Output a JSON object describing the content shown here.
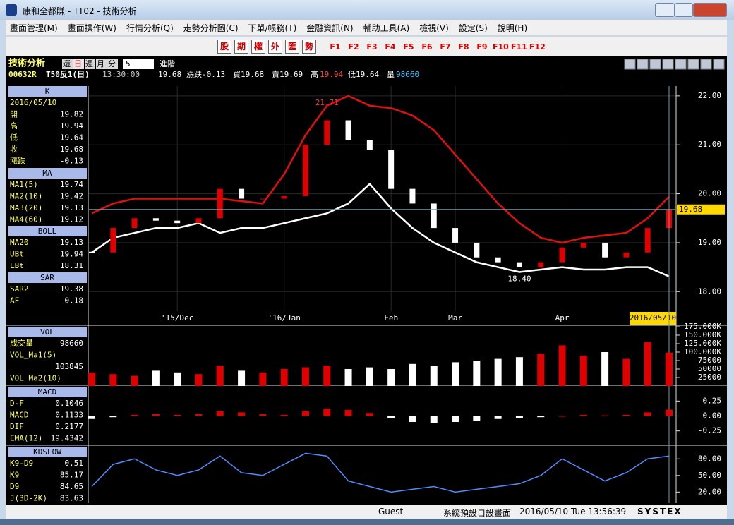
{
  "window": {
    "title": "康和全都賺 - TT02 - 技術分析"
  },
  "menu": [
    "畫面管理(M)",
    "畫面操作(W)",
    "行情分析(Q)",
    "走勢分析圖(C)",
    "下單/帳務(T)",
    "金融資訊(N)",
    "輔助工具(A)",
    "檢視(V)",
    "設定(S)",
    "說明(H)"
  ],
  "toolbar": {
    "buttons": [
      "股",
      "期",
      "權",
      "外",
      "匯",
      "勢"
    ],
    "keys": [
      "F1",
      "F2",
      "F3",
      "F4",
      "F5",
      "F6",
      "F7",
      "F8",
      "F9",
      "F10",
      "F11",
      "F12"
    ]
  },
  "info": {
    "title": "技術分析",
    "periods": [
      "還",
      "日",
      "週",
      "月",
      "分"
    ],
    "interval": "5",
    "advanced": "進階",
    "symbol": "00632R",
    "name": "T50反1(日)",
    "time": "13:30:00",
    "price": "19.68",
    "change": "漲跌-0.13",
    "bid": "買19.68",
    "ask": "賣19.69",
    "high_label": "高",
    "high": "19.94",
    "low": "低19.64",
    "volume_label": "量",
    "volume": "98660"
  },
  "side_panel": [
    {
      "title": "K",
      "rows": [
        [
          "2016/05/10"
        ],
        [
          "開",
          "19.82"
        ],
        [
          "高",
          "19.94"
        ],
        [
          "低",
          "19.64"
        ],
        [
          "收",
          "19.68"
        ],
        [
          "漲跌",
          "-0.13"
        ]
      ]
    },
    {
      "title": "MA",
      "rows": [
        [
          "MA1(5)",
          "19.74"
        ],
        [
          "MA2(10)",
          "19.42"
        ],
        [
          "MA3(20)",
          "19.13"
        ],
        [
          "MA4(60)",
          "19.12"
        ]
      ]
    },
    {
      "title": "BOLL",
      "rows": [
        [
          "MA20",
          "19.13"
        ],
        [
          "UBt",
          "19.94"
        ],
        [
          "LBt",
          "18.31"
        ]
      ]
    },
    {
      "title": "SAR",
      "rows": [
        [
          "SAR2",
          "19.38"
        ],
        [
          "AF",
          "0.18"
        ]
      ]
    },
    {
      "title": "VOL",
      "rows": [
        [
          "成交量",
          "98660"
        ],
        [
          "VOL_Ma1(5)"
        ],
        [
          "103845"
        ],
        [
          "VOL_Ma2(10)"
        ]
      ]
    },
    {
      "title": "MACD",
      "rows": [
        [
          "D-F",
          "0.1046"
        ],
        [
          "MACD",
          "0.1133"
        ],
        [
          "DIF",
          "0.2177"
        ],
        [
          "EMA(12)",
          "19.4342"
        ]
      ]
    },
    {
      "title": "KDSLOW",
      "rows": [
        [
          "K9-D9",
          "0.51"
        ],
        [
          "K9",
          "85.17"
        ],
        [
          "D9",
          "84.65"
        ],
        [
          "J(3D-2K)",
          "83.63"
        ]
      ]
    }
  ],
  "chart_data": [
    {
      "type": "candlestick",
      "categories": [
        null,
        null,
        null,
        null,
        "'15/Dec",
        null,
        null,
        null,
        null,
        "'16/Jan",
        null,
        null,
        null,
        null,
        "Feb",
        null,
        null,
        "Mar",
        null,
        null,
        null,
        null,
        "Apr",
        null,
        null,
        null,
        null,
        "2016/05/10"
      ],
      "series": [
        {
          "color": "#e00000",
          "values": [
            18.8,
            19.3,
            19.5,
            19.45,
            19.4,
            19.5,
            20.1,
            19.9,
            19.9,
            19.95,
            21.0,
            21.5,
            21.1,
            20.9,
            20.1,
            19.8,
            19.3,
            19.0,
            18.7,
            18.6,
            18.5,
            18.6,
            18.9,
            19.0,
            18.7,
            18.8,
            19.3,
            19.68
          ]
        },
        {
          "color": "#e01010",
          "values": [
            19.6,
            19.8,
            19.9,
            19.9,
            19.9,
            19.9,
            19.9,
            19.85,
            19.8,
            20.4,
            21.2,
            21.8,
            22.0,
            21.8,
            21.75,
            21.6,
            21.3,
            20.8,
            20.3,
            19.8,
            19.4,
            19.1,
            19.0,
            19.1,
            19.15,
            19.2,
            19.5,
            19.94
          ]
        },
        {
          "color": "#ffffff",
          "values": [
            18.8,
            19.1,
            19.2,
            19.3,
            19.3,
            19.4,
            19.2,
            19.3,
            19.3,
            19.4,
            19.5,
            19.6,
            19.8,
            20.2,
            19.7,
            19.3,
            19.0,
            18.8,
            18.6,
            18.5,
            18.4,
            18.45,
            18.5,
            18.45,
            18.45,
            18.5,
            18.5,
            18.31
          ]
        }
      ],
      "annotations": [
        {
          "index": 11,
          "value": 21.71
        },
        {
          "index": 20,
          "value": 18.4,
          "label": "18.40"
        }
      ],
      "ylim": [
        17.6,
        22.2
      ],
      "yticks": [
        {
          "value": 22,
          "label": "22.00"
        },
        {
          "value": 21,
          "label": "21.00"
        },
        {
          "value": 20,
          "label": "20.00"
        },
        {
          "value": 19,
          "label": "19.00"
        },
        {
          "value": 18,
          "label": "18.00"
        }
      ],
      "grid": true
    },
    {
      "type": "bar",
      "values": [
        40000,
        35000,
        30000,
        45000,
        40000,
        35000,
        60000,
        45000,
        40000,
        50000,
        55000,
        60000,
        50000,
        55000,
        50000,
        65000,
        60000,
        70000,
        75000,
        80000,
        85000,
        95000,
        120000,
        90000,
        100000,
        80000,
        130000,
        98660
      ],
      "ylim": [
        0,
        175000
      ],
      "yticks": [
        25000,
        50000,
        75000,
        {
          "value": 100000,
          "label": "100.000K"
        },
        {
          "value": 125000,
          "label": "125.000K"
        },
        {
          "value": 150000,
          "label": "150.000K"
        },
        {
          "value": 175000,
          "label": "175.000K"
        }
      ],
      "up_color": "#e00000",
      "down_color": "#ffffff"
    },
    {
      "type": "bar",
      "values": [
        -0.05,
        -0.02,
        0.02,
        0.03,
        0.02,
        0.03,
        0.08,
        0.06,
        0.03,
        0.02,
        0.08,
        0.12,
        0.1,
        0.05,
        -0.04,
        -0.1,
        -0.12,
        -0.1,
        -0.08,
        -0.05,
        -0.03,
        -0.02,
        0.0,
        0.02,
        0.01,
        0.02,
        0.06,
        0.1046
      ],
      "ylim": [
        -0.49,
        0.49
      ],
      "yticks": [
        0.25,
        {
          "value": 0,
          "label": "0.00"
        },
        -0.25
      ],
      "up_color": "#e00000",
      "down_color": "#ffffff"
    },
    {
      "type": "line",
      "values": [
        30,
        70,
        80,
        60,
        50,
        60,
        85,
        55,
        50,
        70,
        90,
        85,
        40,
        30,
        20,
        25,
        30,
        20,
        25,
        30,
        35,
        50,
        80,
        60,
        40,
        55,
        80,
        85.17
      ],
      "color": "#4f8cff",
      "ylim": [
        0,
        102
      ],
      "yticks": [
        {
          "value": 80,
          "label": "80.00"
        },
        {
          "value": 50,
          "label": "50.00"
        },
        {
          "value": 20,
          "label": "20.00"
        }
      ]
    }
  ],
  "status": {
    "user": "Guest",
    "layout": "系統預設自設畫面",
    "datetime": "2016/05/10 Tue 13:56:39",
    "brand": "SYSTEX"
  }
}
